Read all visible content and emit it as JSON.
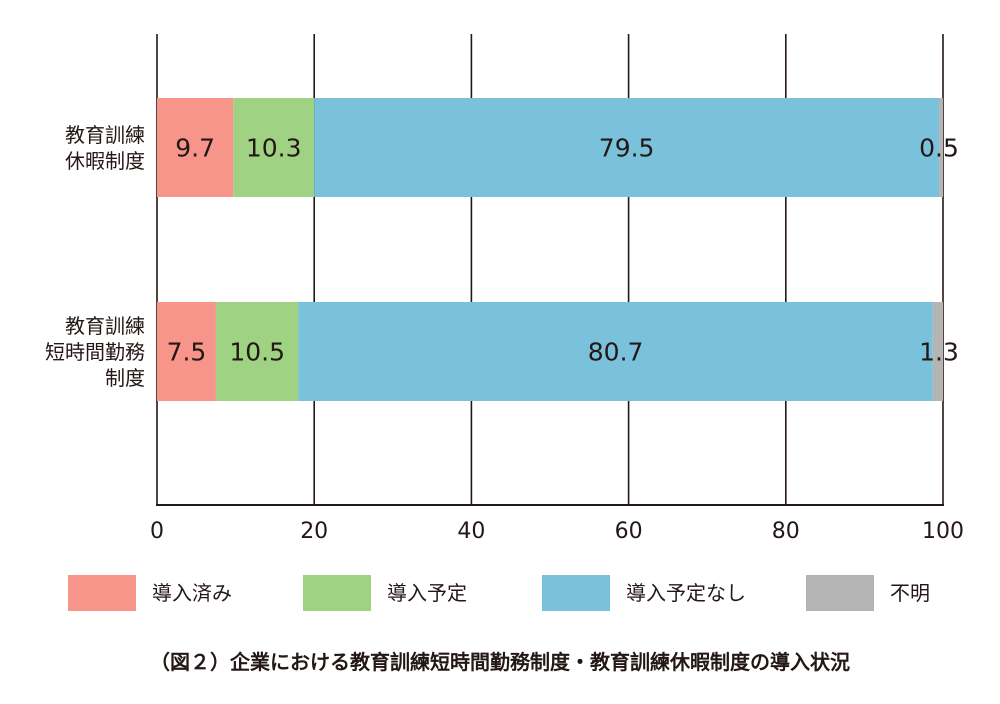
{
  "chart_data": {
    "type": "bar",
    "orientation": "horizontal",
    "stacked": true,
    "categories": [
      [
        "教育訓練",
        "休暇制度"
      ],
      [
        "教育訓練",
        "短時間勤務",
        "制度"
      ]
    ],
    "series": [
      {
        "name": "導入済み",
        "color": "#F7958A",
        "values": [
          9.7,
          7.5
        ]
      },
      {
        "name": "導入予定",
        "color": "#A0D283",
        "values": [
          10.3,
          10.5
        ]
      },
      {
        "name": "導入予定なし",
        "color": "#7AC2DC",
        "values": [
          79.5,
          80.7
        ]
      },
      {
        "name": "不明",
        "color": "#B4B4B4",
        "values": [
          0.5,
          1.3
        ]
      }
    ],
    "data_labels": [
      [
        "9.7",
        "7.5"
      ],
      [
        "10.3",
        "10.5"
      ],
      [
        "79.5",
        "80.7"
      ],
      [
        "0.5",
        "1.3"
      ]
    ],
    "xlim": [
      0,
      100
    ],
    "xticks": [
      "0",
      "20",
      "40",
      "60",
      "80",
      "100"
    ],
    "grid": true,
    "legend_position": "bottom",
    "caption": "（図２）企業における教育訓練短時間勤務制度・教育訓練休暇制度の導入状況"
  }
}
